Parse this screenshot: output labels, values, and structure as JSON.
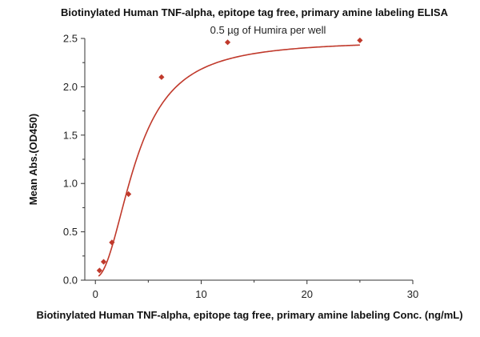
{
  "chart_data": {
    "type": "scatter",
    "title": "Biotinylated Human TNF-alpha, epitope tag free, primary amine labeling ELISA",
    "subtitle": "0.5 µg of Humira per well",
    "xlabel": "Biotinylated Human TNF-alpha, epitope tag free, primary amine labeling Conc. (ng/mL)",
    "ylabel": "Mean Abs.(OD450)",
    "xlim": [
      -1,
      30
    ],
    "ylim": [
      0,
      2.5
    ],
    "x_ticks": [
      0,
      10,
      20,
      30
    ],
    "y_ticks": [
      0.0,
      0.5,
      1.0,
      1.5,
      2.0,
      2.5
    ],
    "grid": false,
    "colors": {
      "marker": "#c0392b",
      "fit_line": "#c0392b",
      "axis": "#333333"
    },
    "series": [
      {
        "x": [
          0.39,
          0.78,
          1.56,
          3.13,
          6.25,
          12.5,
          25
        ],
        "y": [
          0.1,
          0.19,
          0.39,
          0.89,
          2.1,
          2.46,
          2.48
        ]
      }
    ],
    "fit": {
      "type": "4PL",
      "bottom": 0.03,
      "top": 2.48,
      "ec50": 3.9,
      "hill": 2.1
    }
  }
}
